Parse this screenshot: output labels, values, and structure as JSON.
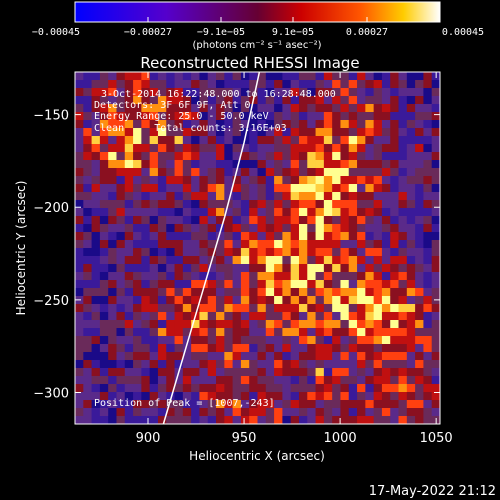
{
  "colorbar": {
    "ticks": [
      "−0.00045",
      "−0.00027",
      "−9.1e−05",
      "9.1e−05",
      "0.00027",
      "0.00045"
    ],
    "unit_label": "(photons cm⁻² s⁻¹ asec⁻²)",
    "range": [
      -0.00045,
      0.00045
    ],
    "colors": [
      "#0000ff",
      "#4400cc",
      "#660066",
      "#990000",
      "#ff3300",
      "#ffaa00",
      "#ffff66",
      "#ffffff"
    ]
  },
  "chart_data": {
    "type": "heatmap",
    "title": "Reconstructed RHESSI Image",
    "xlabel": "Heliocentric X (arcsec)",
    "ylabel": "Heliocentric Y (arcsec)",
    "xlim": [
      862,
      1052
    ],
    "ylim": [
      -317,
      -127
    ],
    "xticks": [
      900,
      950,
      1000,
      1050
    ],
    "yticks": [
      -150,
      -200,
      -250,
      -300
    ],
    "annotations": {
      "time": "3-Oct-2014 16:22:48.000 to 16:28:48.000",
      "detectors": "Detectors: 3F 6F 9F, Att 0",
      "energy": "Energy Range: 25.0 - 50.0 keV",
      "clean": "Clean     Total counts: 3.16E+03",
      "peak": "Position of Peak = [1007,-243]"
    },
    "peak_position": [
      1007,
      -243
    ],
    "limb_curve": {
      "description": "solar limb",
      "points": [
        [
          908,
          -317
        ],
        [
          920,
          -275
        ],
        [
          930,
          -240
        ],
        [
          940,
          -205
        ],
        [
          950,
          -165
        ],
        [
          958,
          -127
        ]
      ]
    }
  },
  "footer": {
    "timestamp": "17-May-2022 21:12"
  }
}
